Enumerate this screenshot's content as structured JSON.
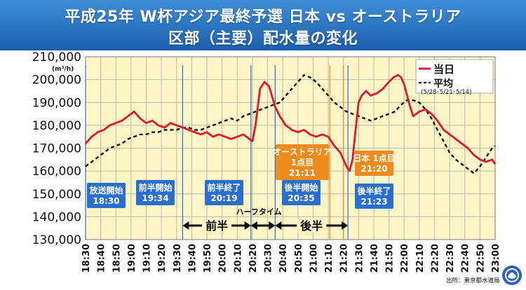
{
  "header": {
    "title_line1": "平成25年 W杯アジア最終予選 日本 vs オーストラリア",
    "title_line2": "区部（主要）配水量の変化"
  },
  "source": "出所：東京都水道局",
  "colors": {
    "header_bg": "#2f7fcf",
    "plot_bg": "#fff6c8",
    "today_line": "#e0182d",
    "avg_line": "#111111",
    "callout_blue": "#2a6fcf",
    "callout_orange": "#ef8a1c"
  },
  "chart_data": {
    "type": "line",
    "ylabel": "(m³/h)",
    "ylim": [
      130000,
      210000
    ],
    "yticks": [
      130000,
      140000,
      150000,
      160000,
      170000,
      180000,
      190000,
      200000,
      210000
    ],
    "ytick_labels": [
      "130,000",
      "140,000",
      "150,000",
      "160,000",
      "170,000",
      "180,000",
      "190,000",
      "200,000",
      "210,000"
    ],
    "x_range": [
      "18:30",
      "23:00"
    ],
    "x_tick_labels": [
      "18:30",
      "18:40",
      "18:50",
      "19:00",
      "19:10",
      "19:20",
      "19:30",
      "19:40",
      "19:50",
      "20:00",
      "20:10",
      "20:20",
      "20:30",
      "20:40",
      "20:50",
      "21:00",
      "21:10",
      "21:20",
      "21:30",
      "21:40",
      "21:50",
      "22:00",
      "22:10",
      "22:20",
      "22:30",
      "22:40",
      "22:50",
      "23:00"
    ],
    "grid": true,
    "legend_position": "top-right",
    "series": [
      {
        "name": "当日",
        "style": "solid",
        "x": [
          "18:30",
          "18:34",
          "18:38",
          "18:42",
          "18:46",
          "18:50",
          "18:54",
          "18:58",
          "19:02",
          "19:06",
          "19:10",
          "19:14",
          "19:18",
          "19:22",
          "19:26",
          "19:30",
          "19:34",
          "19:38",
          "19:42",
          "19:46",
          "19:50",
          "19:54",
          "19:58",
          "20:02",
          "20:06",
          "20:10",
          "20:14",
          "20:18",
          "20:20",
          "20:22",
          "20:25",
          "20:28",
          "20:31",
          "20:35",
          "20:38",
          "20:42",
          "20:46",
          "20:50",
          "20:54",
          "20:58",
          "21:02",
          "21:06",
          "21:10",
          "21:14",
          "21:18",
          "21:20",
          "21:22",
          "21:24",
          "21:26",
          "21:28",
          "21:30",
          "21:32",
          "21:35",
          "21:38",
          "21:42",
          "21:46",
          "21:50",
          "21:53",
          "21:56",
          "21:58",
          "22:00",
          "22:02",
          "22:04",
          "22:06",
          "22:10",
          "22:14",
          "22:18",
          "22:22",
          "22:26",
          "22:30",
          "22:34",
          "22:38",
          "22:42",
          "22:46",
          "22:50",
          "22:54",
          "22:58",
          "23:00"
        ],
        "y": [
          172000,
          175000,
          177000,
          178000,
          180000,
          181000,
          182000,
          184000,
          186000,
          183000,
          181000,
          182000,
          180000,
          179000,
          181000,
          180000,
          179000,
          178000,
          177000,
          176000,
          177000,
          175000,
          176000,
          175000,
          174000,
          175000,
          176000,
          174000,
          173000,
          180000,
          196000,
          199000,
          197000,
          188000,
          184000,
          180000,
          178000,
          177000,
          178000,
          176000,
          175000,
          176000,
          175000,
          171000,
          168000,
          165000,
          162000,
          160000,
          165000,
          178000,
          190000,
          193000,
          195000,
          193000,
          194000,
          196000,
          199000,
          201000,
          202000,
          201000,
          198000,
          193000,
          188000,
          184000,
          186000,
          187000,
          185000,
          182000,
          178000,
          176000,
          174000,
          172000,
          170000,
          167000,
          165000,
          164000,
          165000,
          163000
        ]
      },
      {
        "name": "平均",
        "sublabel": "(5/28･5/21･5/14)",
        "style": "dashed",
        "x": [
          "18:30",
          "18:34",
          "18:38",
          "18:42",
          "18:46",
          "18:50",
          "18:54",
          "18:58",
          "19:02",
          "19:06",
          "19:10",
          "19:14",
          "19:18",
          "19:22",
          "19:26",
          "19:30",
          "19:34",
          "19:38",
          "19:42",
          "19:46",
          "19:50",
          "19:54",
          "19:58",
          "20:02",
          "20:06",
          "20:10",
          "20:14",
          "20:18",
          "20:22",
          "20:26",
          "20:30",
          "20:34",
          "20:38",
          "20:42",
          "20:46",
          "20:50",
          "20:54",
          "20:58",
          "21:02",
          "21:06",
          "21:10",
          "21:14",
          "21:18",
          "21:22",
          "21:26",
          "21:30",
          "21:34",
          "21:38",
          "21:42",
          "21:46",
          "21:50",
          "21:54",
          "21:58",
          "22:02",
          "22:06",
          "22:10",
          "22:14",
          "22:18",
          "22:22",
          "22:26",
          "22:30",
          "22:34",
          "22:38",
          "22:42",
          "22:46",
          "22:50",
          "22:54",
          "22:58",
          "23:00"
        ],
        "y": [
          162000,
          164000,
          166000,
          168000,
          170000,
          171000,
          172000,
          174000,
          175000,
          176000,
          176000,
          177000,
          177000,
          178000,
          178000,
          178000,
          179000,
          179000,
          178000,
          178000,
          179000,
          180000,
          181000,
          182000,
          183000,
          182000,
          184000,
          185000,
          186000,
          187000,
          188000,
          189000,
          190000,
          193000,
          196000,
          199000,
          202000,
          201000,
          199000,
          196000,
          193000,
          190000,
          188000,
          186000,
          185000,
          184000,
          183000,
          182000,
          183000,
          184000,
          185000,
          186000,
          189000,
          191000,
          191000,
          190000,
          187000,
          183000,
          178000,
          173000,
          168000,
          165000,
          163000,
          161000,
          159000,
          162000,
          166000,
          170000,
          171000
        ]
      }
    ],
    "events": [
      {
        "time": "18:30",
        "label_line1": "放送開始",
        "label_line2": "18:30",
        "color": "blue"
      },
      {
        "time": "19:34",
        "label_line1": "前半開始",
        "label_line2": "19:34",
        "color": "blue"
      },
      {
        "time": "20:19",
        "label_line1": "前半終了",
        "label_line2": "20:19",
        "color": "blue"
      },
      {
        "time": "20:35",
        "label_line1": "後半開始",
        "label_line2": "20:35",
        "color": "blue"
      },
      {
        "time": "21:11",
        "label_line1": "オーストラリア",
        "label_line2": "1点目",
        "label_line3": "21:11",
        "color": "orange"
      },
      {
        "time": "21:20",
        "label_line1": "日本 1点目",
        "label_line2": "21:20",
        "color": "orange"
      },
      {
        "time": "21:23",
        "label_line1": "後半終了",
        "label_line2": "21:23",
        "color": "blue"
      }
    ],
    "periods": [
      {
        "label": "前半",
        "from": "19:34",
        "to": "20:19"
      },
      {
        "label": "",
        "from": "20:19",
        "to": "20:35"
      },
      {
        "label": "後半",
        "from": "20:35",
        "to": "21:23"
      }
    ],
    "annotations": [
      {
        "text": "ハーフタイム",
        "near": "20:27"
      }
    ]
  }
}
